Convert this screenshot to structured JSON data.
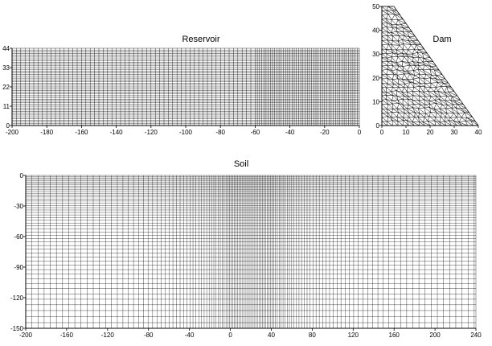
{
  "chart_data": [
    {
      "type": "mesh",
      "title": "Reservoir",
      "x_ticks": [
        -200,
        -180,
        -160,
        -140,
        -120,
        -100,
        -80,
        -60,
        -40,
        -20,
        0
      ],
      "y_ticks": [
        0,
        11,
        22,
        33,
        44
      ],
      "xlim": [
        -200,
        0
      ],
      "ylim": [
        0,
        44
      ],
      "grid": "structured quadrilateral mesh",
      "colors": {
        "mesh": "#000000",
        "background": "#ffffff"
      }
    },
    {
      "type": "mesh",
      "title": "Dam",
      "x_ticks": [
        0,
        10,
        20,
        30,
        40
      ],
      "y_ticks": [
        0,
        10,
        20,
        30,
        40,
        50
      ],
      "xlim": [
        0,
        40
      ],
      "ylim": [
        0,
        50
      ],
      "outline": [
        [
          0,
          0
        ],
        [
          40,
          0
        ],
        [
          5,
          50
        ],
        [
          0,
          50
        ]
      ],
      "grid": "unstructured triangular mesh",
      "colors": {
        "mesh": "#000000",
        "background": "#ffffff"
      }
    },
    {
      "type": "mesh",
      "title": "Soil",
      "x_ticks": [
        -200,
        -160,
        -120,
        -80,
        -40,
        0,
        40,
        80,
        120,
        160,
        200,
        240
      ],
      "y_ticks": [
        0,
        -30,
        -60,
        -90,
        -120,
        -150
      ],
      "xlim": [
        -200,
        240
      ],
      "ylim": [
        -150,
        0
      ],
      "grid": "structured quadrilateral mesh, refined toward the dam region",
      "colors": {
        "mesh": "#000000",
        "background": "#ffffff"
      }
    }
  ]
}
